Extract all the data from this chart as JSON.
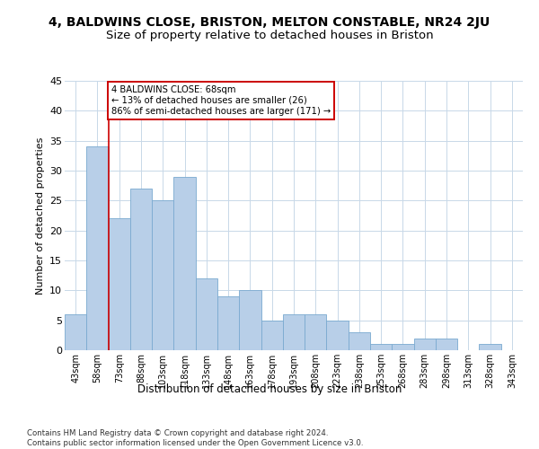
{
  "title": "4, BALDWINS CLOSE, BRISTON, MELTON CONSTABLE, NR24 2JU",
  "subtitle": "Size of property relative to detached houses in Briston",
  "xlabel": "Distribution of detached houses by size in Briston",
  "ylabel": "Number of detached properties",
  "categories": [
    "43sqm",
    "58sqm",
    "73sqm",
    "88sqm",
    "103sqm",
    "118sqm",
    "133sqm",
    "148sqm",
    "163sqm",
    "178sqm",
    "193sqm",
    "208sqm",
    "223sqm",
    "238sqm",
    "253sqm",
    "268sqm",
    "283sqm",
    "298sqm",
    "313sqm",
    "328sqm",
    "343sqm"
  ],
  "values": [
    6,
    34,
    22,
    27,
    25,
    29,
    12,
    9,
    10,
    5,
    6,
    6,
    5,
    3,
    1,
    1,
    2,
    2,
    0,
    1,
    0
  ],
  "bar_color": "#b8cfe8",
  "bar_edge_color": "#7aaad0",
  "property_line_x": 1.5,
  "property_line_color": "#cc0000",
  "annotation_text": "4 BALDWINS CLOSE: 68sqm\n← 13% of detached houses are smaller (26)\n86% of semi-detached houses are larger (171) →",
  "annotation_box_color": "#cc0000",
  "ylim": [
    0,
    45
  ],
  "yticks": [
    0,
    5,
    10,
    15,
    20,
    25,
    30,
    35,
    40,
    45
  ],
  "grid_color": "#c8d8e8",
  "footer": "Contains HM Land Registry data © Crown copyright and database right 2024.\nContains public sector information licensed under the Open Government Licence v3.0.",
  "bg_color": "#ffffff",
  "title_fontsize": 10,
  "subtitle_fontsize": 9.5,
  "bar_width": 1.0
}
